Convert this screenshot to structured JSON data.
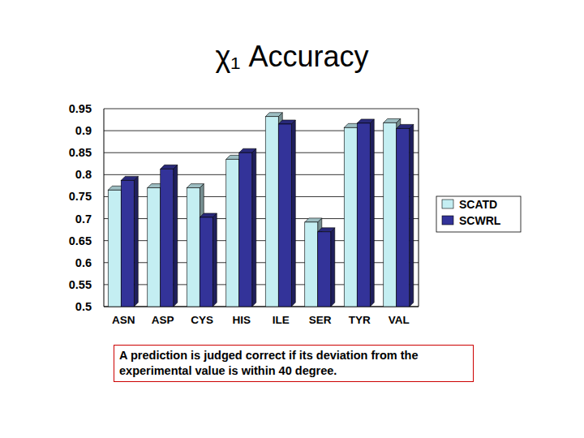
{
  "chart_data": {
    "type": "bar",
    "title": "χ₁ Accuracy",
    "categories": [
      "ASN",
      "ASP",
      "CYS",
      "HIS",
      "ILE",
      "SER",
      "TYR",
      "VAL"
    ],
    "series": [
      {
        "name": "SCATD",
        "color": "#c4eef2",
        "values": [
          0.765,
          0.77,
          0.77,
          0.835,
          0.932,
          0.692,
          0.907,
          0.918
        ]
      },
      {
        "name": "SCWRL",
        "color": "#333399",
        "values": [
          0.787,
          0.813,
          0.703,
          0.85,
          0.915,
          0.67,
          0.917,
          0.905
        ]
      }
    ],
    "ylim": [
      0.5,
      0.95
    ],
    "yticks": [
      0.5,
      0.55,
      0.6,
      0.65,
      0.7,
      0.75,
      0.8,
      0.85,
      0.9,
      0.95
    ],
    "grid": true,
    "legend": "right",
    "annotation": "A prediction is judged correct if its deviation from the experimental value is within 40 degree."
  }
}
